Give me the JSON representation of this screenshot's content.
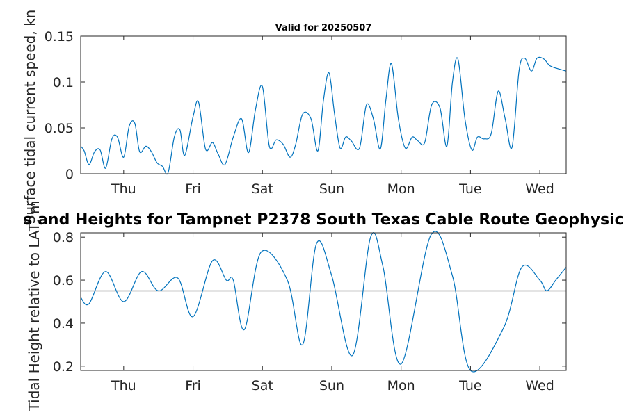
{
  "line_color": "#0072bd",
  "reference_line_color": "#262626",
  "chart_data": [
    {
      "type": "line",
      "title": "Valid for 20250507",
      "xlabel": "",
      "ylabel": "Surface tidal current speed, kn",
      "xlim": [
        0,
        7
      ],
      "ylim": [
        0,
        0.15
      ],
      "yticks": [
        0,
        0.05,
        0.1,
        0.15
      ],
      "ytick_labels": [
        "0",
        "0.05",
        "0.1",
        "0.15"
      ],
      "xtick_positions": [
        0.62,
        1.62,
        2.62,
        3.62,
        4.62,
        5.62,
        6.62
      ],
      "xtick_labels": [
        "Thu",
        "Fri",
        "Sat",
        "Sun",
        "Mon",
        "Tue",
        "Wed"
      ],
      "grid": false,
      "series": [
        {
          "x": [
            0.0,
            0.05,
            0.12,
            0.2,
            0.28,
            0.36,
            0.45,
            0.53,
            0.62,
            0.7,
            0.78,
            0.85,
            0.94,
            1.02,
            1.1,
            1.18,
            1.26,
            1.35,
            1.43,
            1.5,
            1.62,
            1.7,
            1.8,
            1.9,
            1.98,
            2.08,
            2.2,
            2.32,
            2.42,
            2.52,
            2.62,
            2.72,
            2.82,
            2.92,
            3.02,
            3.1,
            3.2,
            3.32,
            3.42,
            3.5,
            3.58,
            3.66,
            3.74,
            3.82,
            3.9,
            4.02,
            4.12,
            4.22,
            4.32,
            4.4,
            4.48,
            4.58,
            4.68,
            4.78,
            4.86,
            4.96,
            5.06,
            5.18,
            5.28,
            5.36,
            5.44,
            5.54,
            5.64,
            5.72,
            5.82,
            5.92,
            6.02,
            6.12,
            6.22,
            6.32,
            6.4,
            6.5,
            6.58,
            6.68,
            6.76,
            6.86,
            6.95,
            7.0
          ],
          "y": [
            0.03,
            0.025,
            0.01,
            0.024,
            0.026,
            0.006,
            0.038,
            0.04,
            0.018,
            0.052,
            0.055,
            0.024,
            0.03,
            0.024,
            0.012,
            0.008,
            0.001,
            0.04,
            0.048,
            0.02,
            0.062,
            0.078,
            0.027,
            0.034,
            0.022,
            0.01,
            0.04,
            0.06,
            0.023,
            0.07,
            0.095,
            0.03,
            0.037,
            0.032,
            0.018,
            0.032,
            0.065,
            0.06,
            0.025,
            0.08,
            0.11,
            0.065,
            0.028,
            0.04,
            0.036,
            0.028,
            0.075,
            0.06,
            0.027,
            0.08,
            0.12,
            0.06,
            0.028,
            0.04,
            0.036,
            0.034,
            0.075,
            0.072,
            0.03,
            0.1,
            0.125,
            0.06,
            0.026,
            0.04,
            0.038,
            0.044,
            0.09,
            0.06,
            0.029,
            0.112,
            0.126,
            0.112,
            0.126,
            0.125,
            0.118,
            0.115,
            0.113,
            0.112
          ]
        }
      ]
    },
    {
      "type": "line",
      "title": "s and Heights for Tampnet P2378 South Texas Cable Route Geophysic",
      "xlabel": "",
      "ylabel": "Tidal Height relative to LAT, m",
      "xlim": [
        0,
        7
      ],
      "ylim": [
        0.18,
        0.82
      ],
      "yticks": [
        0.2,
        0.4,
        0.6,
        0.8
      ],
      "ytick_labels": [
        "0.2",
        "0.4",
        "0.6",
        "0.8"
      ],
      "xtick_positions": [
        0.62,
        1.62,
        2.62,
        3.62,
        4.62,
        5.62,
        6.62
      ],
      "xtick_labels": [
        "Thu",
        "Fri",
        "Sat",
        "Sun",
        "Mon",
        "Tue",
        "Wed"
      ],
      "grid": false,
      "reference_line": 0.55,
      "series": [
        {
          "x": [
            0.0,
            0.12,
            0.36,
            0.62,
            0.88,
            1.12,
            1.4,
            1.62,
            1.9,
            2.1,
            2.2,
            2.36,
            2.6,
            2.98,
            3.2,
            3.4,
            3.62,
            3.92,
            4.18,
            4.36,
            4.62,
            5.05,
            5.36,
            5.62,
            6.1,
            6.36,
            6.62,
            6.72,
            6.85,
            6.95,
            7.0
          ],
          "y": [
            0.52,
            0.49,
            0.64,
            0.5,
            0.64,
            0.55,
            0.61,
            0.43,
            0.69,
            0.6,
            0.6,
            0.37,
            0.73,
            0.6,
            0.3,
            0.77,
            0.62,
            0.25,
            0.8,
            0.66,
            0.21,
            0.81,
            0.62,
            0.18,
            0.38,
            0.66,
            0.6,
            0.55,
            0.6,
            0.64,
            0.66
          ]
        }
      ]
    }
  ]
}
